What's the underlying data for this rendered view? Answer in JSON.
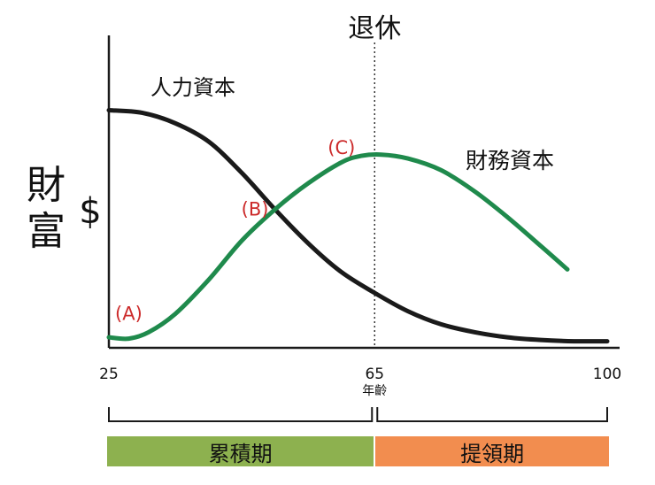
{
  "chart_data": {
    "type": "line",
    "ylabel_lines": [
      "財",
      "富"
    ],
    "ylabel_symbol": "$",
    "xlabel": "年齡",
    "xlim": [
      25,
      100
    ],
    "ylim": [
      0,
      100
    ],
    "x_ticks": [
      {
        "value": 25,
        "label": "25"
      },
      {
        "value": 65,
        "label": "65"
      },
      {
        "value": 100,
        "label": "100"
      }
    ],
    "grid": false,
    "retirement": {
      "x": 65,
      "label": "退休"
    },
    "series": [
      {
        "name": "人力資本",
        "color": "#1a1a1a",
        "points": [
          [
            25,
            90
          ],
          [
            30,
            89
          ],
          [
            35,
            85
          ],
          [
            40,
            78
          ],
          [
            45,
            66
          ],
          [
            50,
            52
          ],
          [
            55,
            39
          ],
          [
            60,
            28
          ],
          [
            65,
            20
          ],
          [
            70,
            13
          ],
          [
            75,
            8
          ],
          [
            80,
            5
          ],
          [
            85,
            3
          ],
          [
            90,
            2
          ],
          [
            95,
            1.5
          ],
          [
            100,
            1.5
          ]
        ]
      },
      {
        "name": "財務資本",
        "color": "#1f8a4c",
        "points": [
          [
            25,
            3
          ],
          [
            28,
            2.5
          ],
          [
            31,
            5
          ],
          [
            35,
            12
          ],
          [
            40,
            25
          ],
          [
            45,
            40
          ],
          [
            50,
            52
          ],
          [
            55,
            62
          ],
          [
            60,
            70
          ],
          [
            63,
            72.5
          ],
          [
            66,
            73
          ],
          [
            70,
            71.5
          ],
          [
            75,
            67
          ],
          [
            80,
            59
          ],
          [
            85,
            49
          ],
          [
            90,
            38
          ],
          [
            94,
            29
          ]
        ]
      }
    ],
    "annotations": [
      {
        "label": "(A)",
        "x": 31,
        "y": 5,
        "color": "#cc2b2b"
      },
      {
        "label": "(B)",
        "x": 50,
        "y": 52,
        "color": "#cc2b2b"
      },
      {
        "label": "(C)",
        "x": 63,
        "y": 72.5,
        "color": "#cc2b2b"
      }
    ],
    "phases": [
      {
        "label": "累積期",
        "from": 25,
        "to": 65,
        "color": "#8db14f"
      },
      {
        "label": "提領期",
        "from": 65,
        "to": 100,
        "color": "#f28d4f"
      }
    ]
  }
}
